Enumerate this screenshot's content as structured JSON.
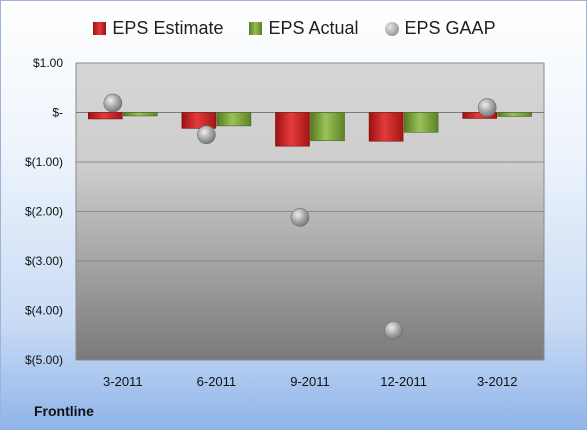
{
  "footer_label": "Frontline",
  "chart_data": {
    "type": "bar",
    "categories": [
      "3-2011",
      "6-2011",
      "9-2011",
      "12-2011",
      "3-2012"
    ],
    "series": [
      {
        "name": "EPS Estimate",
        "kind": "bar",
        "color": "#d42020",
        "values": [
          -0.13,
          -0.32,
          -0.68,
          -0.58,
          -0.12
        ]
      },
      {
        "name": "EPS Actual",
        "kind": "bar",
        "color": "#7aa23a",
        "values": [
          -0.07,
          -0.27,
          -0.57,
          -0.4,
          -0.08
        ]
      },
      {
        "name": "EPS GAAP",
        "kind": "scatter",
        "color": "#a9a9a9",
        "values": [
          0.19,
          -0.45,
          -2.12,
          -4.4,
          0.1
        ]
      }
    ],
    "yticks": [
      "$1.00",
      "$-",
      "$(1.00)",
      "$(2.00)",
      "$(3.00)",
      "$(4.00)",
      "$(5.00)"
    ],
    "ylim": [
      -5,
      1
    ],
    "legend_position": "top",
    "grid": true
  }
}
